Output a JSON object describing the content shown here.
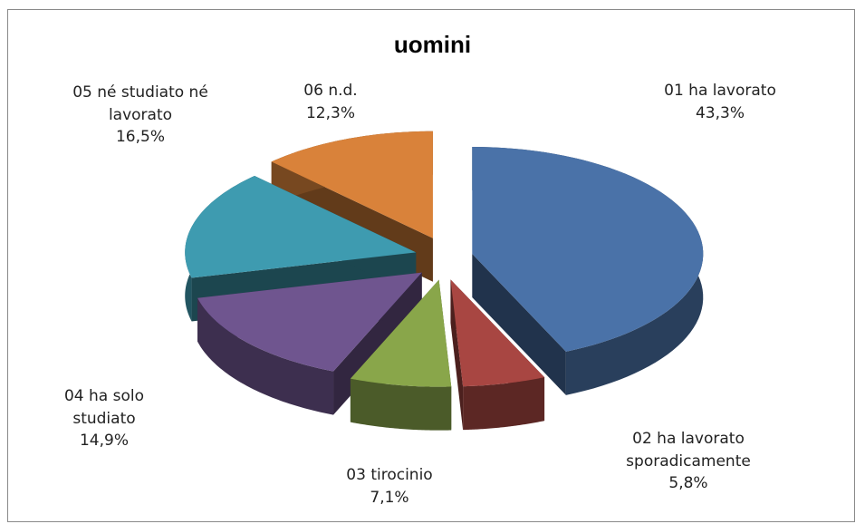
{
  "chart_data": {
    "type": "pie3d",
    "title": "uomini",
    "categories": [
      "01 ha lavorato",
      "02 ha lavorato sporadicamente",
      "03 tirocinio",
      "04 ha solo studiato",
      "05 né studiato né lavorato",
      "06 n.d."
    ],
    "values": [
      43.3,
      5.8,
      7.1,
      14.9,
      16.5,
      12.3
    ],
    "value_labels": [
      "43,3%",
      "5,8%",
      "7,1%",
      "14,9%",
      "16,5%",
      "12,3%"
    ],
    "colors": [
      "#4a72a8",
      "#a84642",
      "#89a64a",
      "#6f558f",
      "#3e9bb0",
      "#d9823a"
    ]
  }
}
